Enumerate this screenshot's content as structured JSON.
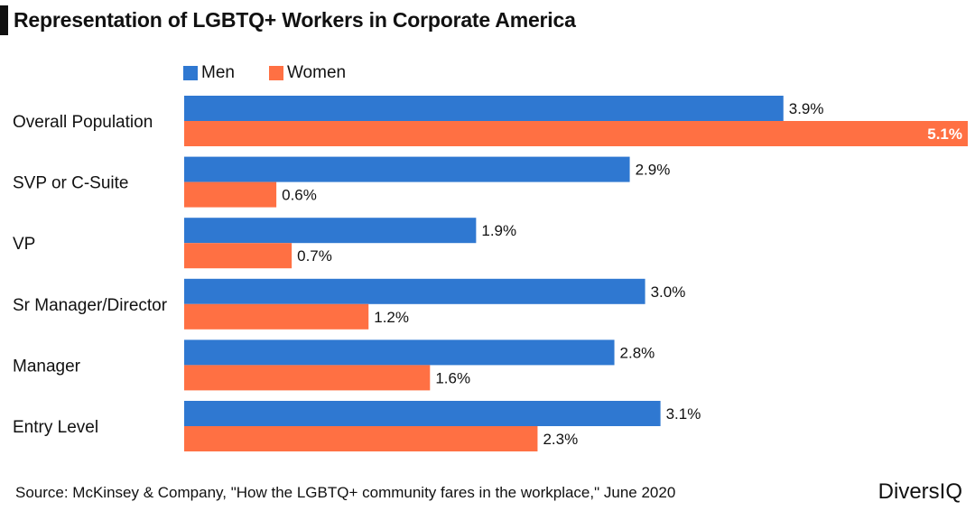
{
  "chart_data": {
    "type": "bar",
    "orientation": "horizontal",
    "title": "Representation of LGBTQ+ Workers in Corporate America",
    "categories": [
      "Overall Population",
      "SVP or C-Suite",
      "VP",
      "Sr Manager/Director",
      "Manager",
      "Entry Level"
    ],
    "series": [
      {
        "name": "Men",
        "color": "#2f78d1",
        "values": [
          3.9,
          2.9,
          1.9,
          3.0,
          2.8,
          3.1
        ],
        "labels": [
          "3.9%",
          "2.9%",
          "1.9%",
          "3.0%",
          "2.8%",
          "3.1%"
        ]
      },
      {
        "name": "Women",
        "color": "#ff7043",
        "values": [
          5.1,
          0.6,
          0.7,
          1.2,
          1.6,
          2.3
        ],
        "labels": [
          "5.1%",
          "0.6%",
          "0.7%",
          "1.2%",
          "1.6%",
          "2.3%"
        ]
      }
    ],
    "xlim": [
      0,
      5.1
    ],
    "grid": false,
    "legend": "top-left"
  },
  "footer": {
    "source": "Source: McKinsey & Company, \"How the LGBTQ+ community fares in the workplace,\" June 2020",
    "brand": "DiversIQ"
  }
}
